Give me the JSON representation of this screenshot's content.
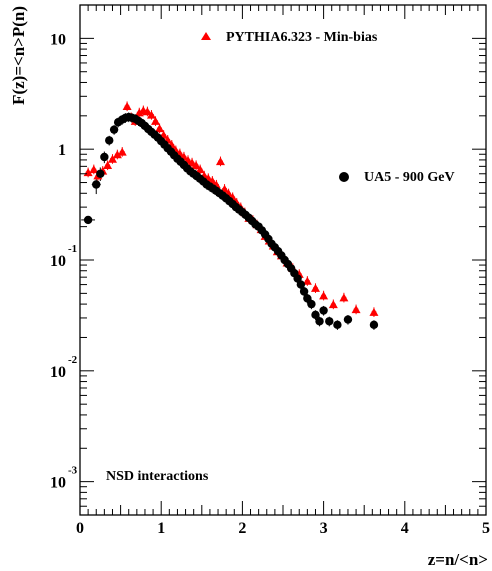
{
  "chart_data": {
    "type": "scatter",
    "xlabel": "z=n/<n>",
    "ylabel": "F(z)=<n>P(n)",
    "xlim": [
      0,
      5
    ],
    "ylim": [
      0.0005,
      20
    ],
    "yscale": "log",
    "grid": false,
    "x_ticks": [
      "0",
      "1",
      "2",
      "3",
      "4",
      "5"
    ],
    "y_ticks": [
      {
        "base": "10",
        "exp": "-3",
        "value": 0.001
      },
      {
        "base": "10",
        "exp": "-2",
        "value": 0.01
      },
      {
        "base": "10",
        "exp": "-1",
        "value": 0.1
      },
      {
        "base": "1",
        "exp": "",
        "value": 1
      },
      {
        "base": "10",
        "exp": "",
        "value": 10
      }
    ],
    "annotation": "NSD interactions",
    "series": [
      {
        "name": "PYTHIA6.323 - Min-bias",
        "marker": "triangle",
        "color": "#ff0000",
        "points": [
          [
            0.1,
            0.62
          ],
          [
            0.17,
            0.66
          ],
          [
            0.22,
            0.58
          ],
          [
            0.28,
            0.64
          ],
          [
            0.34,
            0.72
          ],
          [
            0.4,
            0.82
          ],
          [
            0.46,
            0.9
          ],
          [
            0.52,
            0.95
          ],
          [
            0.58,
            2.45
          ],
          [
            0.63,
            1.95
          ],
          [
            0.68,
            1.8
          ],
          [
            0.73,
            2.15
          ],
          [
            0.78,
            2.25
          ],
          [
            0.83,
            2.2
          ],
          [
            0.88,
            2.05
          ],
          [
            0.93,
            1.8
          ],
          [
            0.98,
            1.55
          ],
          [
            1.03,
            1.35
          ],
          [
            1.08,
            1.22
          ],
          [
            1.13,
            1.1
          ],
          [
            1.18,
            0.98
          ],
          [
            1.23,
            0.92
          ],
          [
            1.28,
            0.86
          ],
          [
            1.33,
            0.8
          ],
          [
            1.38,
            0.76
          ],
          [
            1.43,
            0.72
          ],
          [
            1.48,
            0.66
          ],
          [
            1.53,
            0.58
          ],
          [
            1.58,
            0.55
          ],
          [
            1.63,
            0.52
          ],
          [
            1.68,
            0.48
          ],
          [
            1.73,
            0.78
          ],
          [
            1.78,
            0.44
          ],
          [
            1.83,
            0.4
          ],
          [
            1.88,
            0.37
          ],
          [
            1.93,
            0.33
          ],
          [
            1.98,
            0.3
          ],
          [
            2.03,
            0.27
          ],
          [
            2.08,
            0.24
          ],
          [
            2.13,
            0.23
          ],
          [
            2.18,
            0.21
          ],
          [
            2.23,
            0.19
          ],
          [
            2.28,
            0.165
          ],
          [
            2.33,
            0.15
          ],
          [
            2.38,
            0.135
          ],
          [
            2.43,
            0.12
          ],
          [
            2.48,
            0.11
          ],
          [
            2.55,
            0.095
          ],
          [
            2.62,
            0.085
          ],
          [
            2.7,
            0.075
          ],
          [
            2.8,
            0.065
          ],
          [
            2.9,
            0.056
          ],
          [
            3.0,
            0.048
          ],
          [
            3.12,
            0.04
          ],
          [
            3.25,
            0.046
          ],
          [
            3.4,
            0.036
          ],
          [
            3.62,
            0.034
          ]
        ],
        "errors": [
          [
            0.06,
            0.1
          ],
          [
            0.06,
            0.1
          ],
          [
            0.06,
            0.1
          ],
          [
            0.06,
            0.1
          ],
          [
            0.06,
            0.1
          ],
          [
            0.06,
            0.1
          ],
          [
            0.06,
            0.1
          ],
          [
            0.06,
            0.1
          ],
          [
            0.06,
            0.1
          ],
          [
            0.06,
            0.1
          ],
          [
            0.06,
            0.1
          ],
          [
            0.06,
            0.1
          ],
          [
            0.06,
            0.1
          ],
          [
            0.06,
            0.1
          ],
          [
            0.06,
            0.1
          ],
          [
            0.06,
            0.1
          ],
          [
            0.06,
            0.1
          ],
          [
            0.06,
            0.1
          ],
          [
            0.06,
            0.1
          ],
          [
            0.06,
            0.1
          ],
          [
            0.06,
            0.1
          ],
          [
            0.06,
            0.1
          ],
          [
            0.06,
            0.1
          ],
          [
            0.06,
            0.1
          ],
          [
            0.06,
            0.1
          ],
          [
            0.06,
            0.1
          ],
          [
            0.06,
            0.1
          ],
          [
            0.06,
            0.1
          ],
          [
            0.06,
            0.1
          ],
          [
            0.06,
            0.1
          ],
          [
            0.06,
            0.1
          ],
          [
            0.06,
            0.1
          ],
          [
            0.06,
            0.1
          ],
          [
            0.06,
            0.1
          ],
          [
            0.06,
            0.1
          ],
          [
            0.06,
            0.1
          ],
          [
            0.06,
            0.1
          ],
          [
            0.06,
            0.1
          ],
          [
            0.06,
            0.1
          ],
          [
            0.06,
            0.1
          ],
          [
            0.06,
            0.1
          ],
          [
            0.06,
            0.1
          ],
          [
            0.06,
            0.1
          ],
          [
            0.06,
            0.1
          ],
          [
            0.06,
            0.1
          ],
          [
            0.06,
            0.1
          ],
          [
            0.06,
            0.1
          ],
          [
            0.06,
            0.1
          ],
          [
            0.06,
            0.1
          ],
          [
            0.06,
            0.1
          ],
          [
            0.06,
            0.1
          ],
          [
            0.06,
            0.1
          ],
          [
            0.06,
            0.1
          ],
          [
            0.06,
            0.1
          ],
          [
            0.06,
            0.1
          ],
          [
            0.06,
            0.1
          ],
          [
            0.06,
            0.1
          ]
        ]
      },
      {
        "name": "UA5 - 900 GeV",
        "marker": "circle",
        "color": "#000000",
        "points": [
          [
            0.1,
            0.23
          ],
          [
            0.2,
            0.48
          ],
          [
            0.25,
            0.6
          ],
          [
            0.3,
            0.85
          ],
          [
            0.36,
            1.2
          ],
          [
            0.42,
            1.5
          ],
          [
            0.47,
            1.75
          ],
          [
            0.52,
            1.85
          ],
          [
            0.56,
            1.92
          ],
          [
            0.6,
            1.95
          ],
          [
            0.64,
            1.92
          ],
          [
            0.68,
            1.88
          ],
          [
            0.72,
            1.8
          ],
          [
            0.76,
            1.72
          ],
          [
            0.8,
            1.62
          ],
          [
            0.84,
            1.52
          ],
          [
            0.88,
            1.43
          ],
          [
            0.92,
            1.35
          ],
          [
            0.96,
            1.27
          ],
          [
            1.0,
            1.18
          ],
          [
            1.04,
            1.1
          ],
          [
            1.08,
            1.02
          ],
          [
            1.12,
            0.95
          ],
          [
            1.16,
            0.88
          ],
          [
            1.2,
            0.82
          ],
          [
            1.24,
            0.77
          ],
          [
            1.28,
            0.72
          ],
          [
            1.32,
            0.67
          ],
          [
            1.36,
            0.63
          ],
          [
            1.4,
            0.6
          ],
          [
            1.44,
            0.57
          ],
          [
            1.48,
            0.54
          ],
          [
            1.52,
            0.51
          ],
          [
            1.56,
            0.48
          ],
          [
            1.6,
            0.46
          ],
          [
            1.64,
            0.44
          ],
          [
            1.68,
            0.42
          ],
          [
            1.72,
            0.4
          ],
          [
            1.76,
            0.38
          ],
          [
            1.8,
            0.36
          ],
          [
            1.84,
            0.34
          ],
          [
            1.88,
            0.32
          ],
          [
            1.92,
            0.3
          ],
          [
            1.96,
            0.285
          ],
          [
            2.0,
            0.27
          ],
          [
            2.04,
            0.255
          ],
          [
            2.08,
            0.24
          ],
          [
            2.12,
            0.225
          ],
          [
            2.16,
            0.21
          ],
          [
            2.2,
            0.2
          ],
          [
            2.24,
            0.185
          ],
          [
            2.28,
            0.17
          ],
          [
            2.32,
            0.155
          ],
          [
            2.36,
            0.14
          ],
          [
            2.4,
            0.13
          ],
          [
            2.44,
            0.12
          ],
          [
            2.48,
            0.11
          ],
          [
            2.52,
            0.1
          ],
          [
            2.56,
            0.092
          ],
          [
            2.6,
            0.084
          ],
          [
            2.64,
            0.076
          ],
          [
            2.68,
            0.068
          ],
          [
            2.72,
            0.06
          ],
          [
            2.76,
            0.052
          ],
          [
            2.8,
            0.045
          ],
          [
            2.85,
            0.04
          ],
          [
            2.9,
            0.032
          ],
          [
            2.95,
            0.028
          ],
          [
            3.0,
            0.035
          ],
          [
            3.07,
            0.028
          ],
          [
            3.17,
            0.026
          ],
          [
            3.3,
            0.029
          ],
          [
            3.62,
            0.026
          ]
        ],
        "errors": [
          [
            0.17,
            0.012
          ],
          [
            0.11,
            0.18
          ],
          [
            0.08,
            0.14
          ],
          [
            0.06,
            0.12
          ],
          [
            0.06,
            0.1
          ],
          [
            0.06,
            0.1
          ],
          [
            0.06,
            0.1
          ],
          [
            0.06,
            0.1
          ],
          [
            0.06,
            0.1
          ],
          [
            0.06,
            0.1
          ],
          [
            0.06,
            0.1
          ],
          [
            0.06,
            0.1
          ],
          [
            0.06,
            0.1
          ],
          [
            0.06,
            0.1
          ],
          [
            0.06,
            0.1
          ],
          [
            0.06,
            0.1
          ],
          [
            0.06,
            0.1
          ],
          [
            0.06,
            0.1
          ],
          [
            0.06,
            0.1
          ],
          [
            0.06,
            0.1
          ],
          [
            0.06,
            0.1
          ],
          [
            0.06,
            0.1
          ],
          [
            0.06,
            0.1
          ],
          [
            0.06,
            0.1
          ],
          [
            0.06,
            0.1
          ],
          [
            0.06,
            0.1
          ],
          [
            0.06,
            0.1
          ],
          [
            0.06,
            0.1
          ],
          [
            0.06,
            0.1
          ],
          [
            0.06,
            0.1
          ],
          [
            0.06,
            0.1
          ],
          [
            0.06,
            0.1
          ],
          [
            0.06,
            0.1
          ],
          [
            0.06,
            0.1
          ],
          [
            0.06,
            0.1
          ],
          [
            0.06,
            0.1
          ],
          [
            0.06,
            0.1
          ],
          [
            0.06,
            0.1
          ],
          [
            0.06,
            0.1
          ],
          [
            0.06,
            0.1
          ],
          [
            0.06,
            0.1
          ],
          [
            0.06,
            0.1
          ],
          [
            0.06,
            0.1
          ],
          [
            0.06,
            0.1
          ],
          [
            0.06,
            0.1
          ],
          [
            0.06,
            0.1
          ],
          [
            0.06,
            0.1
          ],
          [
            0.06,
            0.1
          ],
          [
            0.06,
            0.1
          ],
          [
            0.06,
            0.1
          ],
          [
            0.06,
            0.1
          ],
          [
            0.06,
            0.1
          ],
          [
            0.06,
            0.1
          ],
          [
            0.06,
            0.1
          ],
          [
            0.06,
            0.1
          ],
          [
            0.06,
            0.1
          ],
          [
            0.06,
            0.1
          ],
          [
            0.06,
            0.1
          ],
          [
            0.06,
            0.1
          ],
          [
            0.06,
            0.1
          ],
          [
            0.06,
            0.1
          ],
          [
            0.06,
            0.1
          ],
          [
            0.06,
            0.1
          ],
          [
            0.06,
            0.1
          ],
          [
            0.06,
            0.1
          ],
          [
            0.06,
            0.1
          ],
          [
            0.06,
            0.1
          ],
          [
            0.06,
            0.1
          ],
          [
            0.06,
            0.1
          ],
          [
            0.06,
            0.1
          ],
          [
            0.06,
            0.1
          ],
          [
            0.06,
            0.1
          ],
          [
            0.06,
            0.1
          ]
        ]
      }
    ]
  }
}
